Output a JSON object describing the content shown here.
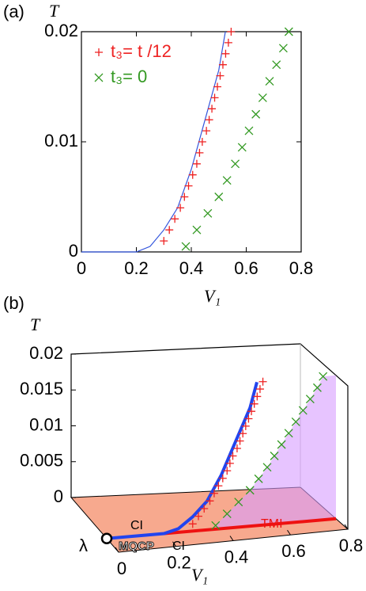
{
  "chart_data": [
    {
      "type": "line",
      "label": "(a)",
      "ylabel": "T",
      "xlabel": "V₁",
      "xlim": [
        0,
        0.8
      ],
      "xticks": [
        0,
        0.2,
        0.4,
        0.6,
        0.8
      ],
      "ylim": [
        0,
        0.02
      ],
      "yticks": [
        0,
        0.01,
        0.02
      ],
      "curve": {
        "color": "#3355dd",
        "x": [
          0,
          0.2,
          0.25,
          0.3,
          0.35,
          0.4,
          0.45,
          0.5,
          0.524
        ],
        "values": [
          0,
          0,
          0.0005,
          0.002,
          0.004,
          0.0075,
          0.012,
          0.0165,
          0.02
        ]
      },
      "series": [
        {
          "name": "t₃= t /12",
          "color": "#ee2222",
          "marker": "+",
          "x": [
            0.3,
            0.32,
            0.34,
            0.36,
            0.375,
            0.39,
            0.405,
            0.42,
            0.43,
            0.44,
            0.455,
            0.465,
            0.475,
            0.485,
            0.495,
            0.505,
            0.515,
            0.525,
            0.535,
            0.545
          ],
          "values": [
            0.001,
            0.002,
            0.003,
            0.004,
            0.005,
            0.006,
            0.007,
            0.008,
            0.009,
            0.01,
            0.011,
            0.012,
            0.013,
            0.014,
            0.015,
            0.016,
            0.017,
            0.018,
            0.019,
            0.02
          ]
        },
        {
          "name": "t₃= 0",
          "color": "#339922",
          "marker": "x",
          "x": [
            0.38,
            0.42,
            0.46,
            0.5,
            0.53,
            0.56,
            0.585,
            0.61,
            0.635,
            0.66,
            0.685,
            0.71,
            0.735,
            0.755
          ],
          "values": [
            0.0005,
            0.002,
            0.0035,
            0.005,
            0.0065,
            0.008,
            0.0095,
            0.011,
            0.0125,
            0.014,
            0.0155,
            0.017,
            0.0185,
            0.02
          ]
        }
      ]
    },
    {
      "type": "phase3d",
      "label": "(b)",
      "ylabel": "T",
      "xlabel": "V₁",
      "zlabel": "λ",
      "xlim": [
        0,
        0.8
      ],
      "xticks": [
        0,
        0.2,
        0.4,
        0.6,
        0.8
      ],
      "ylim": [
        0,
        0.02
      ],
      "yticks": [
        0,
        0.005,
        0.01,
        0.015,
        0.02
      ],
      "annotations": [
        "CI",
        "MQCP",
        "CI",
        "TMI"
      ],
      "floor_color": "#f7a98e",
      "plane_color": "#d79cff"
    }
  ]
}
